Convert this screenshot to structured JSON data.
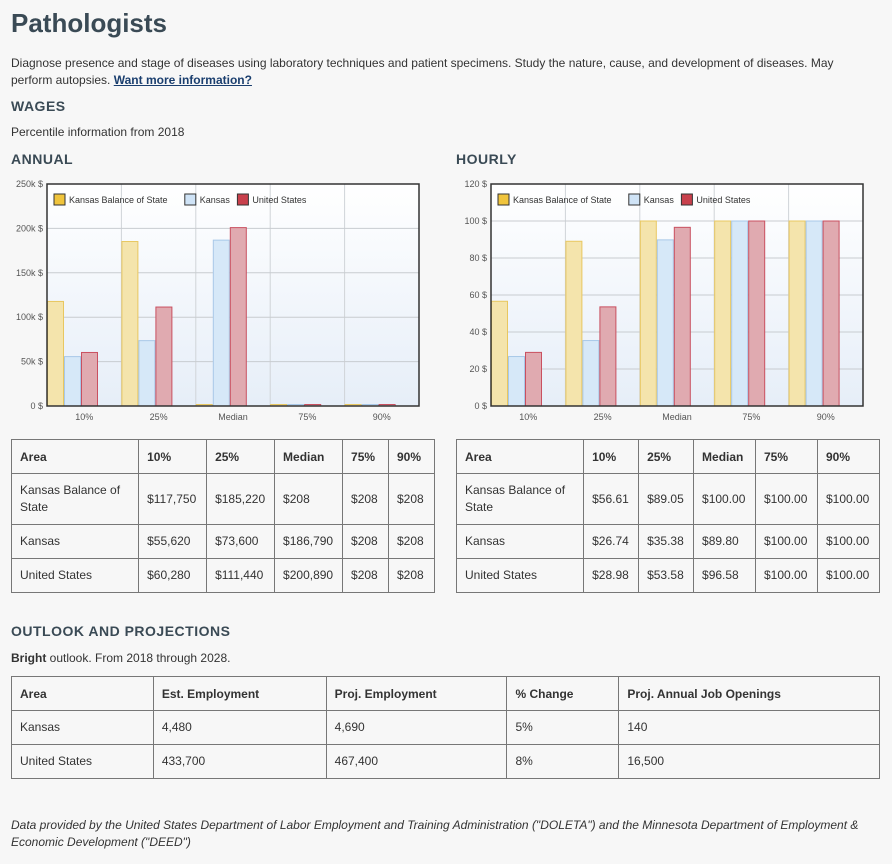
{
  "title": "Pathologists",
  "description": "Diagnose presence and stage of diseases using laboratory techniques and patient specimens. Study the nature, cause, and development of diseases. May perform autopsies.",
  "more_info_link": "Want more information?",
  "wages": {
    "heading": "WAGES",
    "subtitle": "Percentile information from 2018",
    "annual_heading": "ANNUAL",
    "hourly_heading": "HOURLY"
  },
  "legend": [
    "Kansas Balance of State",
    "Kansas",
    "United States"
  ],
  "colors": {
    "series_fill": [
      "#f4e4ac",
      "#d6e8f8",
      "#e0aab0"
    ],
    "series_stroke": [
      "#e8c760",
      "#a8c8e8",
      "#c95060"
    ],
    "legend_box": [
      "#f0c43c",
      "#cfe3f6",
      "#c8404c"
    ]
  },
  "chart_data": [
    {
      "type": "bar",
      "categories": [
        "10%",
        "25%",
        "Median",
        "75%",
        "90%"
      ],
      "series": [
        {
          "name": "Kansas Balance of State",
          "values": [
            117750,
            185220,
            208,
            208,
            208
          ]
        },
        {
          "name": "Kansas",
          "values": [
            55620,
            73600,
            186790,
            208,
            208
          ]
        },
        {
          "name": "United States",
          "values": [
            60280,
            111440,
            200890,
            208,
            208
          ]
        }
      ],
      "ylim": [
        0,
        250000
      ],
      "yticks": [
        0,
        50000,
        100000,
        150000,
        200000,
        250000
      ],
      "yticklabels": [
        "0 $",
        "50k $",
        "100k $",
        "150k $",
        "200k $",
        "250k $"
      ],
      "grid": true,
      "legend_position": "top-left"
    },
    {
      "type": "bar",
      "categories": [
        "10%",
        "25%",
        "Median",
        "75%",
        "90%"
      ],
      "series": [
        {
          "name": "Kansas Balance of State",
          "values": [
            56.61,
            89.05,
            100.0,
            100.0,
            100.0
          ]
        },
        {
          "name": "Kansas",
          "values": [
            26.74,
            35.38,
            89.8,
            100.0,
            100.0
          ]
        },
        {
          "name": "United States",
          "values": [
            28.98,
            53.58,
            96.58,
            100.0,
            100.0
          ]
        }
      ],
      "ylim": [
        0,
        120
      ],
      "yticks": [
        0,
        20,
        40,
        60,
        80,
        100,
        120
      ],
      "yticklabels": [
        "0 $",
        "20 $",
        "40 $",
        "60 $",
        "80 $",
        "100 $",
        "120 $"
      ],
      "grid": true,
      "legend_position": "top-left"
    }
  ],
  "annual_table": {
    "headers": [
      "Area",
      "10%",
      "25%",
      "Median",
      "75%",
      "90%"
    ],
    "rows": [
      [
        "Kansas Balance of State",
        "$117,750",
        "$185,220",
        "$208",
        "$208",
        "$208"
      ],
      [
        "Kansas",
        "$55,620",
        "$73,600",
        "$186,790",
        "$208",
        "$208"
      ],
      [
        "United States",
        "$60,280",
        "$111,440",
        "$200,890",
        "$208",
        "$208"
      ]
    ]
  },
  "hourly_table": {
    "headers": [
      "Area",
      "10%",
      "25%",
      "Median",
      "75%",
      "90%"
    ],
    "rows": [
      [
        "Kansas Balance of State",
        "$56.61",
        "$89.05",
        "$100.00",
        "$100.00",
        "$100.00"
      ],
      [
        "Kansas",
        "$26.74",
        "$35.38",
        "$89.80",
        "$100.00",
        "$100.00"
      ],
      [
        "United States",
        "$28.98",
        "$53.58",
        "$96.58",
        "$100.00",
        "$100.00"
      ]
    ]
  },
  "outlook": {
    "heading": "OUTLOOK AND PROJECTIONS",
    "bright": "Bright",
    "text": " outlook. From 2018 through 2028.",
    "table": {
      "headers": [
        "Area",
        "Est. Employment",
        "Proj. Employment",
        "% Change",
        "Proj. Annual Job Openings"
      ],
      "rows": [
        [
          "Kansas",
          "4,480",
          "4,690",
          "5%",
          "140"
        ],
        [
          "United States",
          "433,700",
          "467,400",
          "8%",
          "16,500"
        ]
      ]
    }
  },
  "footer": "Data provided by the United States Department of Labor Employment and Training Administration (\"DOLETA\") and the Minnesota Department of Employment & Economic Development (\"DEED\")"
}
